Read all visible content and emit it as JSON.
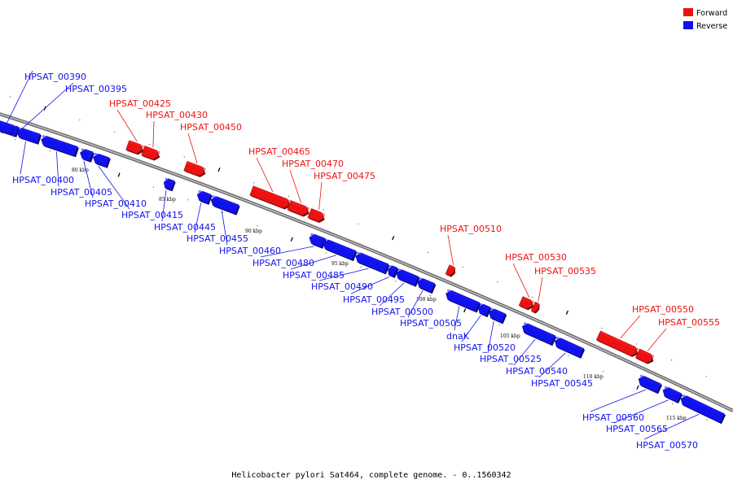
{
  "legend": [
    {
      "label": "Forward",
      "color": "#ee1111"
    },
    {
      "label": "Reverse",
      "color": "#1111ee"
    }
  ],
  "caption": "Helicobacter pylori Sat464, complete genome. - 0..1560342",
  "colors": {
    "forward": "#ee1111",
    "reverse": "#1111ee",
    "backbone": "#888888"
  },
  "kbp_marks": [
    "80 kbp",
    "85 kbp",
    "90 kbp",
    "95 kbp",
    "100 kbp",
    "105 kbp",
    "110 kbp",
    "115 kbp"
  ],
  "genes": [
    {
      "name": "HPSAT_00390",
      "strand": "reverse"
    },
    {
      "name": "HPSAT_00395",
      "strand": "reverse"
    },
    {
      "name": "HPSAT_00400",
      "strand": "reverse"
    },
    {
      "name": "HPSAT_00405",
      "strand": "reverse"
    },
    {
      "name": "HPSAT_00410",
      "strand": "reverse"
    },
    {
      "name": "HPSAT_00415",
      "strand": "reverse"
    },
    {
      "name": "HPSAT_00425",
      "strand": "forward"
    },
    {
      "name": "HPSAT_00430",
      "strand": "forward"
    },
    {
      "name": "HPSAT_00445",
      "strand": "reverse"
    },
    {
      "name": "HPSAT_00450",
      "strand": "forward"
    },
    {
      "name": "HPSAT_00455",
      "strand": "reverse"
    },
    {
      "name": "HPSAT_00460",
      "strand": "reverse"
    },
    {
      "name": "HPSAT_00465",
      "strand": "forward"
    },
    {
      "name": "HPSAT_00470",
      "strand": "forward"
    },
    {
      "name": "HPSAT_00475",
      "strand": "forward"
    },
    {
      "name": "HPSAT_00480",
      "strand": "reverse"
    },
    {
      "name": "HPSAT_00485",
      "strand": "reverse"
    },
    {
      "name": "HPSAT_00490",
      "strand": "reverse"
    },
    {
      "name": "HPSAT_00495",
      "strand": "reverse"
    },
    {
      "name": "HPSAT_00500",
      "strand": "reverse"
    },
    {
      "name": "HPSAT_00505",
      "strand": "reverse"
    },
    {
      "name": "HPSAT_00510",
      "strand": "forward"
    },
    {
      "name": "dnaK",
      "strand": "reverse"
    },
    {
      "name": "HPSAT_00520",
      "strand": "reverse"
    },
    {
      "name": "HPSAT_00525",
      "strand": "reverse"
    },
    {
      "name": "HPSAT_00530",
      "strand": "forward"
    },
    {
      "name": "HPSAT_00535",
      "strand": "forward"
    },
    {
      "name": "HPSAT_00540",
      "strand": "reverse"
    },
    {
      "name": "HPSAT_00545",
      "strand": "reverse"
    },
    {
      "name": "HPSAT_00550",
      "strand": "forward"
    },
    {
      "name": "HPSAT_00555",
      "strand": "forward"
    },
    {
      "name": "HPSAT_00560",
      "strand": "reverse"
    },
    {
      "name": "HPSAT_00565",
      "strand": "reverse"
    },
    {
      "name": "HPSAT_00570",
      "strand": "reverse"
    }
  ]
}
